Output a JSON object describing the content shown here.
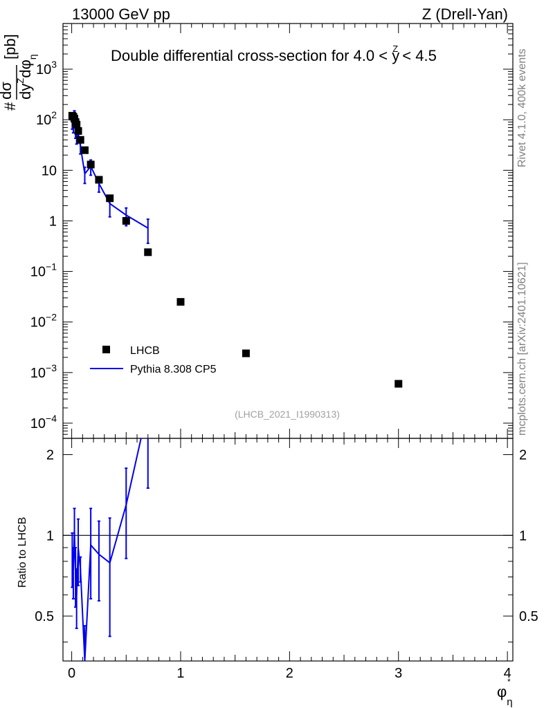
{
  "header": {
    "left": "13000 GeV pp",
    "right": "Z (Drell-Yan)"
  },
  "side_labels": {
    "rivet": "Rivet 4.1.0,  400k events",
    "mcplots": "mcplots.cern.ch [arXiv:2401.10621]"
  },
  "analysis_id": "(LHCB_2021_I1990313)",
  "chart_data": [
    {
      "type": "scatter",
      "title": "Double differential cross-section for 4.0 < y^Z < 4.5",
      "title_parts": {
        "text": "Double differential cross-section for 4.0 < ",
        "var": "y",
        "var_sup": "Z",
        "tail": " < 4.5"
      },
      "ylabel": "d²σ/dy^Z dφ*_η [pb]",
      "ylabel_parts": {
        "num": "dσ",
        "den": "dy",
        "den_sup": "Z",
        "den_tail": "dφ",
        "sub": "η",
        "star": "*",
        "unit": "[pb]",
        "hash": "#"
      },
      "xlabel": "φ*_η",
      "xlabel_parts": {
        "phi": "φ",
        "sub": "η",
        "star": "*"
      },
      "yscale": "log",
      "ylim": [
        5e-05,
        8000
      ],
      "xlim": [
        -0.08,
        4.05
      ],
      "y_ticks": [
        {
          "value": 0.0001,
          "label": "10",
          "exp": "−4"
        },
        {
          "value": 0.001,
          "label": "10",
          "exp": "−3"
        },
        {
          "value": 0.01,
          "label": "10",
          "exp": "−2"
        },
        {
          "value": 0.1,
          "label": "10",
          "exp": "−1"
        },
        {
          "value": 1,
          "label": "1",
          "exp": ""
        },
        {
          "value": 10,
          "label": "10",
          "exp": ""
        },
        {
          "value": 100,
          "label": "10",
          "exp": "2"
        },
        {
          "value": 1000,
          "label": "10",
          "exp": "3"
        }
      ],
      "legend_position": "bottom-left",
      "series": [
        {
          "name": "LHCB",
          "kind": "markers",
          "color": "#000000",
          "x": [
            0.005,
            0.015,
            0.025,
            0.035,
            0.045,
            0.06,
            0.08,
            0.12,
            0.175,
            0.25,
            0.35,
            0.5,
            0.7,
            1.0,
            1.6,
            3.0
          ],
          "y": [
            120,
            115,
            105,
            90,
            80,
            60,
            40,
            25,
            13,
            6.5,
            2.8,
            1.0,
            0.24,
            0.025,
            0.0024,
            0.0006
          ]
        },
        {
          "name": "Pythia 8.308 CP5",
          "kind": "line",
          "color": "#0000ee",
          "x": [
            0.005,
            0.015,
            0.025,
            0.035,
            0.045,
            0.06,
            0.08,
            0.12,
            0.175,
            0.25,
            0.35,
            0.5,
            0.7
          ],
          "y": [
            100,
            85,
            110,
            65,
            48,
            54,
            30,
            8.5,
            12,
            5.5,
            2.2,
            1.3,
            0.72
          ],
          "err_lo": [
            35,
            30,
            40,
            22,
            15,
            17,
            9,
            3,
            4,
            1.8,
            1.0,
            0.5,
            0.36
          ],
          "err_hi": [
            35,
            30,
            40,
            22,
            15,
            17,
            9,
            3,
            4,
            1.8,
            1.0,
            0.5,
            0.36
          ]
        }
      ]
    },
    {
      "type": "line",
      "ylabel": "Ratio to LHCB",
      "xlabel": "φ*_η",
      "xlim": [
        -0.08,
        4.05
      ],
      "ylim": [
        0.34,
        2.3
      ],
      "x_ticks": [
        0,
        1,
        2,
        3,
        4
      ],
      "y_ticks": [
        0.5,
        1,
        2
      ],
      "reference_line": 1,
      "series": [
        {
          "name": "Pythia 8.308 CP5 / LHCB",
          "color": "#0000ee",
          "x": [
            0.005,
            0.015,
            0.025,
            0.035,
            0.045,
            0.06,
            0.08,
            0.12,
            0.175,
            0.25,
            0.35,
            0.5,
            0.7
          ],
          "y": [
            0.83,
            0.74,
            1.05,
            0.72,
            0.6,
            0.9,
            0.75,
            0.34,
            0.92,
            0.85,
            0.79,
            1.3,
            3.0
          ],
          "err_lo": [
            0.19,
            0.16,
            0.21,
            0.18,
            0.15,
            0.25,
            0.08,
            0.12,
            0.34,
            0.28,
            0.37,
            0.48,
            1.5
          ],
          "err_hi": [
            0.19,
            0.16,
            0.21,
            0.18,
            0.15,
            0.25,
            0.08,
            0.12,
            0.34,
            0.28,
            0.37,
            0.48,
            1.5
          ]
        }
      ]
    }
  ]
}
